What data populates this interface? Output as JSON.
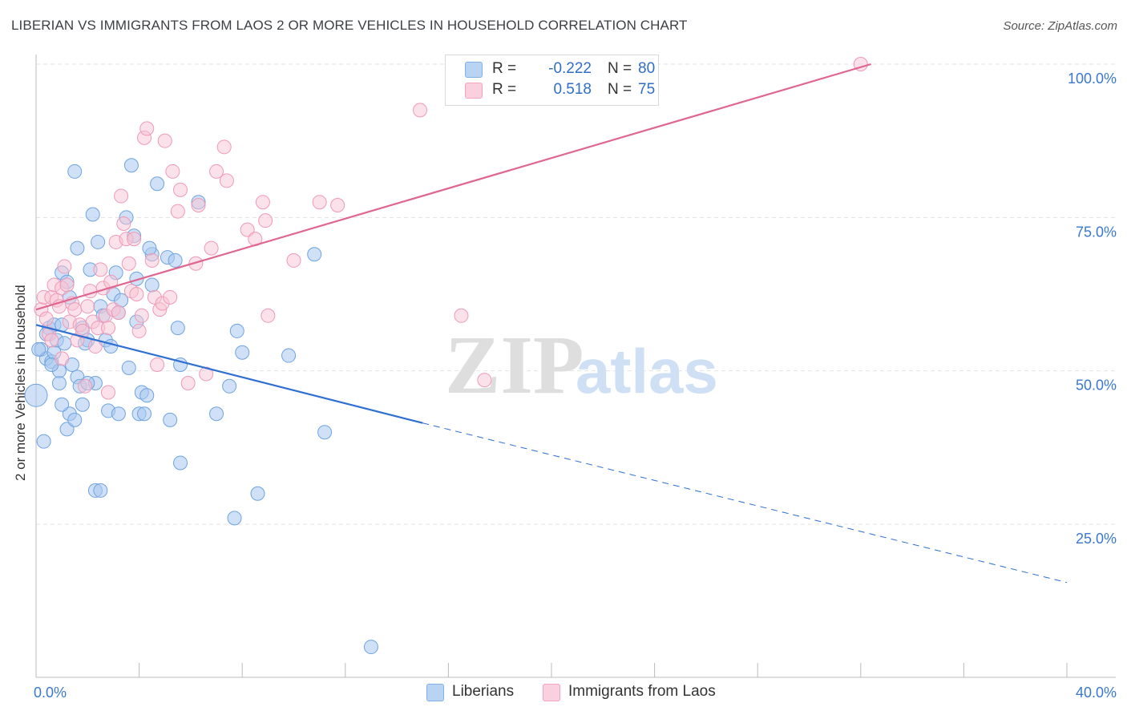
{
  "header": {
    "title": "LIBERIAN VS IMMIGRANTS FROM LAOS 2 OR MORE VEHICLES IN HOUSEHOLD CORRELATION CHART",
    "source": "Source: ZipAtlas.com"
  },
  "watermark": {
    "zip": "ZIP",
    "atlas": "atlas"
  },
  "legend_top": [
    {
      "r_label": "R =",
      "r_value": "-0.222",
      "n_label": "N =",
      "n_value": "80",
      "color": "#7fb0e8"
    },
    {
      "r_label": "R =",
      "r_value": "0.518",
      "n_label": "N =",
      "n_value": "75",
      "color": "#f4a3bd"
    }
  ],
  "legend_bottom": [
    {
      "label": "Liberians",
      "color": "#7fb0e8"
    },
    {
      "label": "Immigrants from Laos",
      "color": "#f4a3bd"
    }
  ],
  "colors": {
    "blue_fill": "#a9c9f0",
    "blue_stroke": "#6fa3e0",
    "blue_line": "#2d6fd2",
    "pink_fill": "#f8c4d4",
    "pink_stroke": "#ef9ab6",
    "pink_line": "#e0668f",
    "tick_label": "#3a78d0",
    "grid": "#e3e3e3"
  },
  "chart_data": {
    "type": "scatter",
    "title": "LIBERIAN VS IMMIGRANTS FROM LAOS 2 OR MORE VEHICLES IN HOUSEHOLD CORRELATION CHART",
    "xlabel": "",
    "ylabel": "2 or more Vehicles in Household",
    "xlim": [
      0,
      40
    ],
    "ylim": [
      0,
      105
    ],
    "x_tick_labels": [
      {
        "value": 0,
        "label": "0.0%"
      },
      {
        "value": 40,
        "label": "40.0%"
      }
    ],
    "y_tick_labels": [
      {
        "value": 25,
        "label": "25.0%"
      },
      {
        "value": 50,
        "label": "50.0%"
      },
      {
        "value": 75,
        "label": "75.0%"
      },
      {
        "value": 100,
        "label": "100.0%"
      }
    ],
    "grid": true,
    "legend_position": "top-center",
    "series": [
      {
        "name": "Liberians",
        "color": "#7fb0e8",
        "trend": {
          "x0": 0,
          "y0": 57.5,
          "x1": 15,
          "y1": 41.5,
          "dashed_to_x": 40,
          "dashed_to_y": 15.5
        },
        "points": [
          [
            0,
            46
          ],
          [
            0.2,
            53.5
          ],
          [
            0.3,
            38.5
          ],
          [
            0.4,
            52
          ],
          [
            0.5,
            57
          ],
          [
            0.6,
            51.5
          ],
          [
            0.7,
            53
          ],
          [
            0.7,
            57.5
          ],
          [
            0.8,
            55
          ],
          [
            0.9,
            48
          ],
          [
            0.9,
            50
          ],
          [
            1,
            57.5
          ],
          [
            1,
            66
          ],
          [
            1.1,
            54.5
          ],
          [
            1.2,
            64.5
          ],
          [
            1.2,
            40.5
          ],
          [
            1.3,
            62
          ],
          [
            1.3,
            43
          ],
          [
            1.4,
            51
          ],
          [
            1.5,
            82.5
          ],
          [
            1.5,
            42
          ],
          [
            1.6,
            70
          ],
          [
            1.6,
            49
          ],
          [
            1.7,
            47.5
          ],
          [
            1.8,
            57
          ],
          [
            1.8,
            44.5
          ],
          [
            2,
            55
          ],
          [
            2.1,
            66.5
          ],
          [
            2.2,
            75.5
          ],
          [
            2.3,
            30.5
          ],
          [
            2.3,
            48
          ],
          [
            2.4,
            71
          ],
          [
            2.5,
            60.5
          ],
          [
            2.5,
            30.5
          ],
          [
            2.6,
            59
          ],
          [
            2.7,
            55
          ],
          [
            2.8,
            43.5
          ],
          [
            2.9,
            54
          ],
          [
            3,
            62.5
          ],
          [
            3.1,
            66
          ],
          [
            3.2,
            43
          ],
          [
            3.3,
            61.5
          ],
          [
            3.5,
            75
          ],
          [
            3.6,
            50.5
          ],
          [
            3.7,
            83.5
          ],
          [
            3.8,
            72
          ],
          [
            3.9,
            65
          ],
          [
            3.9,
            58
          ],
          [
            4,
            43
          ],
          [
            4.1,
            46.5
          ],
          [
            4.2,
            43
          ],
          [
            4.3,
            46
          ],
          [
            4.5,
            64
          ],
          [
            4.5,
            69
          ],
          [
            4.7,
            80.5
          ],
          [
            5.1,
            68.5
          ],
          [
            5.2,
            42
          ],
          [
            5.5,
            57
          ],
          [
            5.6,
            51
          ],
          [
            5.6,
            35
          ],
          [
            6.3,
            77.5
          ],
          [
            7.0,
            43
          ],
          [
            7.5,
            47.5
          ],
          [
            7.7,
            26
          ],
          [
            7.8,
            56.5
          ],
          [
            8,
            53
          ],
          [
            8.6,
            30
          ],
          [
            9.8,
            52.5
          ],
          [
            10.8,
            69
          ],
          [
            11.2,
            40
          ],
          [
            13,
            5
          ],
          [
            0.1,
            53.5
          ],
          [
            0.4,
            56
          ],
          [
            1.9,
            54.5
          ],
          [
            3.2,
            59.5
          ],
          [
            4.4,
            70
          ],
          [
            5.4,
            68
          ],
          [
            2.0,
            48
          ],
          [
            1.0,
            44.5
          ],
          [
            0.6,
            51
          ]
        ]
      },
      {
        "name": "Immigrants from Laos",
        "color": "#f4a3bd",
        "trend": {
          "x0": 0,
          "y0": 60,
          "x1": 32.4,
          "y1": 100
        },
        "points": [
          [
            0.2,
            60
          ],
          [
            0.3,
            62
          ],
          [
            0.4,
            58.5
          ],
          [
            0.5,
            56
          ],
          [
            0.6,
            62
          ],
          [
            0.7,
            64
          ],
          [
            0.8,
            61.5
          ],
          [
            0.9,
            60.5
          ],
          [
            1,
            63.5
          ],
          [
            1.1,
            67
          ],
          [
            1.2,
            64
          ],
          [
            1.3,
            58
          ],
          [
            1.4,
            61
          ],
          [
            1.5,
            60
          ],
          [
            1.6,
            55
          ],
          [
            1.7,
            57.5
          ],
          [
            1.8,
            56.5
          ],
          [
            1.9,
            47.5
          ],
          [
            2,
            60.5
          ],
          [
            2.1,
            63
          ],
          [
            2.2,
            58
          ],
          [
            2.3,
            54
          ],
          [
            2.4,
            57
          ],
          [
            2.5,
            66.5
          ],
          [
            2.6,
            63.5
          ],
          [
            2.7,
            59
          ],
          [
            2.8,
            57
          ],
          [
            2.9,
            64.5
          ],
          [
            3,
            60
          ],
          [
            3.1,
            71
          ],
          [
            3.2,
            59.5
          ],
          [
            3.3,
            78.5
          ],
          [
            3.4,
            74
          ],
          [
            3.5,
            71.5
          ],
          [
            3.6,
            67.5
          ],
          [
            3.7,
            63
          ],
          [
            3.8,
            71.5
          ],
          [
            3.9,
            62.5
          ],
          [
            4,
            56.5
          ],
          [
            4.1,
            59
          ],
          [
            4.2,
            88
          ],
          [
            4.3,
            89.5
          ],
          [
            4.5,
            68
          ],
          [
            4.6,
            62
          ],
          [
            4.7,
            51
          ],
          [
            4.8,
            60
          ],
          [
            4.9,
            61
          ],
          [
            5,
            87.5
          ],
          [
            5.2,
            62
          ],
          [
            5.3,
            82.5
          ],
          [
            5.5,
            76
          ],
          [
            5.6,
            79.5
          ],
          [
            5.9,
            48
          ],
          [
            6.2,
            67.5
          ],
          [
            6.3,
            77
          ],
          [
            6.6,
            49.5
          ],
          [
            6.8,
            70
          ],
          [
            7.0,
            82.5
          ],
          [
            7.3,
            86.5
          ],
          [
            7.4,
            81
          ],
          [
            8.2,
            73
          ],
          [
            8.5,
            71.5
          ],
          [
            8.8,
            77.5
          ],
          [
            8.9,
            74.5
          ],
          [
            9.0,
            59
          ],
          [
            10.0,
            68
          ],
          [
            11.0,
            77.5
          ],
          [
            11.7,
            77
          ],
          [
            14.9,
            92.5
          ],
          [
            16.5,
            59
          ],
          [
            17.4,
            48.5
          ],
          [
            32,
            100
          ],
          [
            2.8,
            46.5
          ],
          [
            0.6,
            55
          ],
          [
            1.0,
            52
          ]
        ]
      }
    ]
  }
}
